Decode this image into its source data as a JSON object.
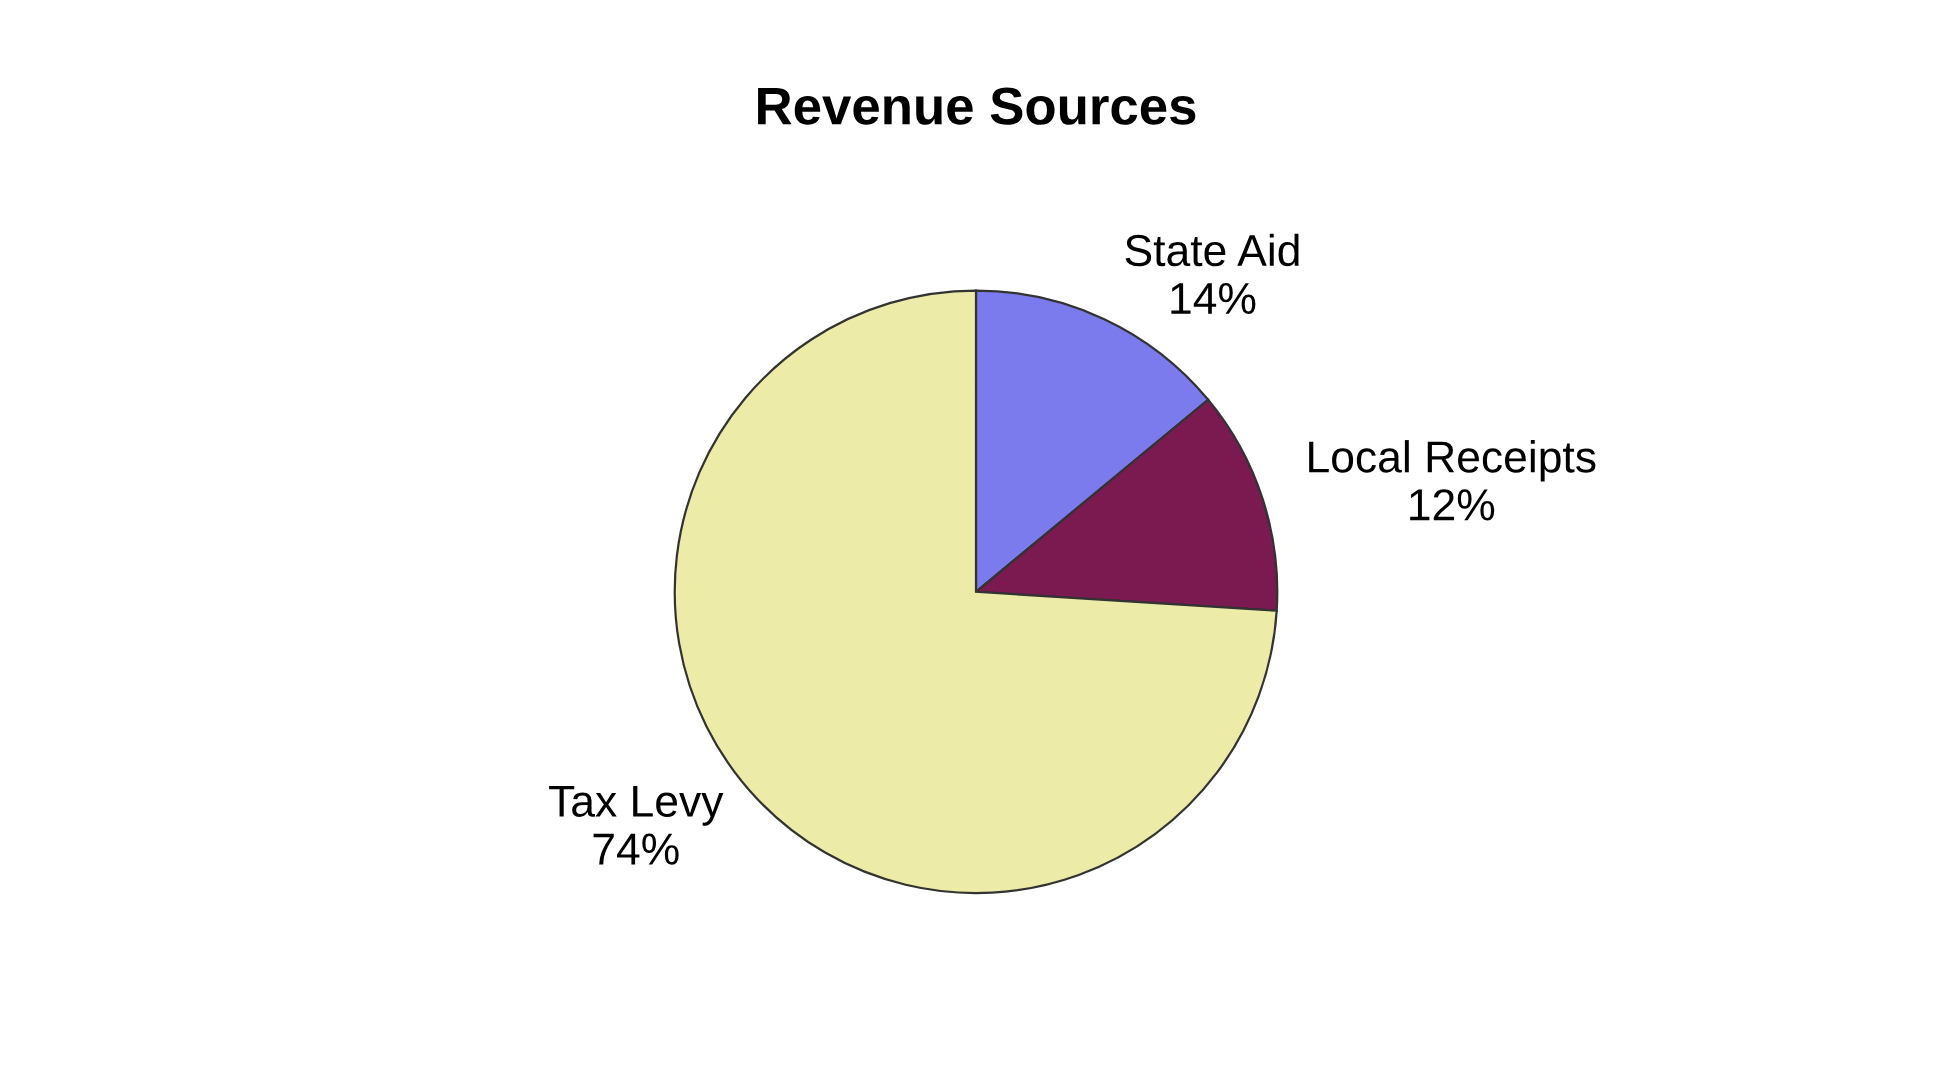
{
  "chart_data": {
    "type": "pie",
    "title": "Revenue Sources",
    "categories": [
      "State Aid",
      "Local Receipts",
      "Tax Levy"
    ],
    "values": [
      14,
      12,
      74
    ],
    "colors": [
      "#7b7bee",
      "#7a1a50",
      "#ececa8"
    ],
    "value_labels": [
      "14%",
      "12%",
      "74%"
    ],
    "legend": false
  }
}
